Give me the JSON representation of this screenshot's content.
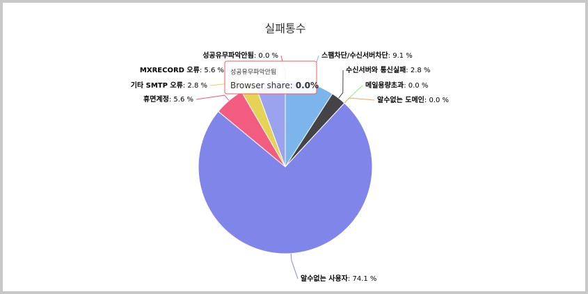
{
  "chart_data": {
    "type": "pie",
    "title": "실패통수",
    "categories": [
      "스팸차단/수신서버차단",
      "수신서버와 통신실패",
      "메일용량초과",
      "알수없는 도메인",
      "알수없는 사용자",
      "휴면계정",
      "기타 SMTP 오류",
      "MXRECORD 오류",
      "성공유무파악안됨"
    ],
    "values": [
      9.1,
      2.8,
      0.0,
      0.0,
      74.1,
      5.6,
      2.8,
      5.6,
      0.0
    ],
    "value_labels": [
      "9.1 %",
      "2.8 %",
      "0.0 %",
      "0.0 %",
      "74.1 %",
      "5.6 %",
      "2.8 %",
      "5.6 %",
      "0.0 %"
    ],
    "label_separator": ": ",
    "colors": [
      "#7cb5ec",
      "#434348",
      "#90ed7d",
      "#f7a35c",
      "#8085e9",
      "#f15c80",
      "#e4d354",
      "#9ba3ee",
      "#f45b5b"
    ],
    "tooltip": {
      "point": 8,
      "name": "Browser share:",
      "value_label": "0.0%"
    }
  }
}
